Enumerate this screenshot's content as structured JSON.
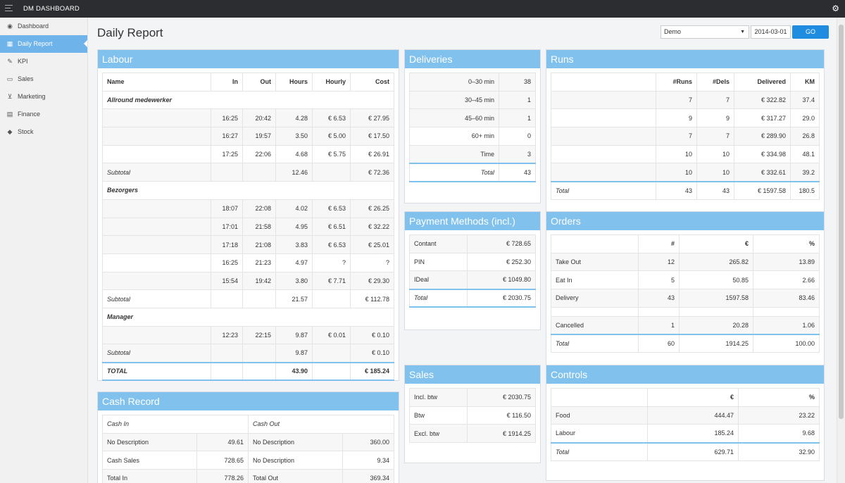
{
  "app": {
    "title": "DM DASHBOARD"
  },
  "sidebar": {
    "items": [
      {
        "label": "Dashboard",
        "icon": "dashboard-icon",
        "glyph": "◉"
      },
      {
        "label": "Daily Report",
        "icon": "calendar-icon",
        "glyph": "▦"
      },
      {
        "label": "KPI",
        "icon": "wrench-icon",
        "glyph": "✎"
      },
      {
        "label": "Sales",
        "icon": "money-icon",
        "glyph": "▭"
      },
      {
        "label": "Marketing",
        "icon": "cart-icon",
        "glyph": "⊻"
      },
      {
        "label": "Finance",
        "icon": "book-icon",
        "glyph": "▤"
      },
      {
        "label": "Stock",
        "icon": "tag-icon",
        "glyph": "◆"
      }
    ]
  },
  "header": {
    "title": "Daily Report",
    "select_value": "Demo",
    "date_value": "2014-03-01",
    "go_label": "GO"
  },
  "labour": {
    "title": "Labour",
    "columns": [
      "Name",
      "In",
      "Out",
      "Hours",
      "Hourly",
      "Cost"
    ],
    "groups": [
      {
        "name": "Allround medewerker",
        "rows": [
          [
            "",
            "16:25",
            "20:42",
            "4.28",
            "€ 6.53",
            "€ 27.95"
          ],
          [
            "",
            "16:27",
            "19:57",
            "3.50",
            "€ 5.00",
            "€ 17.50"
          ],
          [
            "",
            "17:25",
            "22:06",
            "4.68",
            "€ 5.75",
            "€ 26.91"
          ]
        ],
        "subtotal": [
          "Subtotal",
          "",
          "",
          "12.46",
          "",
          "€ 72.36"
        ]
      },
      {
        "name": "Bezorgers",
        "rows": [
          [
            "",
            "18:07",
            "22:08",
            "4.02",
            "€ 6.53",
            "€ 26.25"
          ],
          [
            "",
            "17:01",
            "21:58",
            "4.95",
            "€ 6.51",
            "€ 32.22"
          ],
          [
            "",
            "17:18",
            "21:08",
            "3.83",
            "€ 6.53",
            "€ 25.01"
          ],
          [
            "",
            "16:25",
            "21:23",
            "4.97",
            "?",
            "?"
          ],
          [
            "",
            "15:54",
            "19:42",
            "3.80",
            "€ 7.71",
            "€ 29.30"
          ]
        ],
        "subtotal": [
          "Subtotal",
          "",
          "",
          "21.57",
          "",
          "€ 112.78"
        ]
      },
      {
        "name": "Manager",
        "rows": [
          [
            "",
            "12:23",
            "22:15",
            "9.87",
            "€ 0.01",
            "€ 0.10"
          ]
        ],
        "subtotal": [
          "Subtotal",
          "",
          "",
          "9.87",
          "",
          "€ 0.10"
        ]
      }
    ],
    "total": [
      "TOTAL",
      "",
      "",
      "43.90",
      "",
      "€ 185.24"
    ]
  },
  "cash_record": {
    "title": "Cash Record",
    "headers": [
      "Cash In",
      "Cash Out"
    ],
    "rows": [
      [
        "No Description",
        "49.61",
        "No Description",
        "360.00"
      ],
      [
        "Cash Sales",
        "728.65",
        "No Description",
        "9.34"
      ],
      [
        "Total In",
        "778.26",
        "Total Out",
        "369.34"
      ]
    ]
  },
  "deliveries": {
    "title": "Deliveries",
    "rows": [
      [
        "0–30 min",
        "38"
      ],
      [
        "30–45 min",
        "1"
      ],
      [
        "45–60 min",
        "1"
      ],
      [
        "60+ min",
        "0"
      ],
      [
        "Time",
        "3"
      ]
    ],
    "total": [
      "Total",
      "43"
    ]
  },
  "payment_methods": {
    "title": "Payment Methods (incl.)",
    "rows": [
      [
        "Contant",
        "€ 728.65"
      ],
      [
        "PIN",
        "€ 252.30"
      ],
      [
        "IDeal",
        "€ 1049.80"
      ]
    ],
    "total": [
      "Total",
      "€ 2030.75"
    ]
  },
  "sales": {
    "title": "Sales",
    "rows": [
      [
        "Incl. btw",
        "€ 2030.75"
      ],
      [
        "Btw",
        "€ 116.50"
      ],
      [
        "Excl. btw",
        "€ 1914.25"
      ]
    ]
  },
  "runs": {
    "title": "Runs",
    "columns": [
      "",
      "#Runs",
      "#Dels",
      "Delivered",
      "KM"
    ],
    "rows": [
      [
        "",
        "7",
        "7",
        "€ 322.82",
        "37.4"
      ],
      [
        "",
        "9",
        "9",
        "€ 317.27",
        "29.0"
      ],
      [
        "",
        "7",
        "7",
        "€ 289.90",
        "26.8"
      ],
      [
        "",
        "10",
        "10",
        "€ 334.98",
        "48.1"
      ],
      [
        "",
        "10",
        "10",
        "€ 332.61",
        "39.2"
      ]
    ],
    "total": [
      "Total",
      "43",
      "43",
      "€ 1597.58",
      "180.5"
    ]
  },
  "orders": {
    "title": "Orders",
    "columns": [
      "",
      "#",
      "€",
      "%"
    ],
    "rows": [
      [
        "Take Out",
        "12",
        "265.82",
        "13.89"
      ],
      [
        "Eat In",
        "5",
        "50.85",
        "2.66"
      ],
      [
        "Delivery",
        "43",
        "1597.58",
        "83.46"
      ]
    ],
    "cancelled": [
      "Cancelled",
      "1",
      "20.28",
      "1.06"
    ],
    "total": [
      "Total",
      "60",
      "1914.25",
      "100.00"
    ]
  },
  "controls": {
    "title": "Controls",
    "columns": [
      "",
      "€",
      "%"
    ],
    "rows": [
      [
        "Food",
        "444.47",
        "23.22"
      ],
      [
        "Labour",
        "185.24",
        "9.68"
      ]
    ],
    "total": [
      "Total",
      "629.71",
      "32.90"
    ]
  }
}
